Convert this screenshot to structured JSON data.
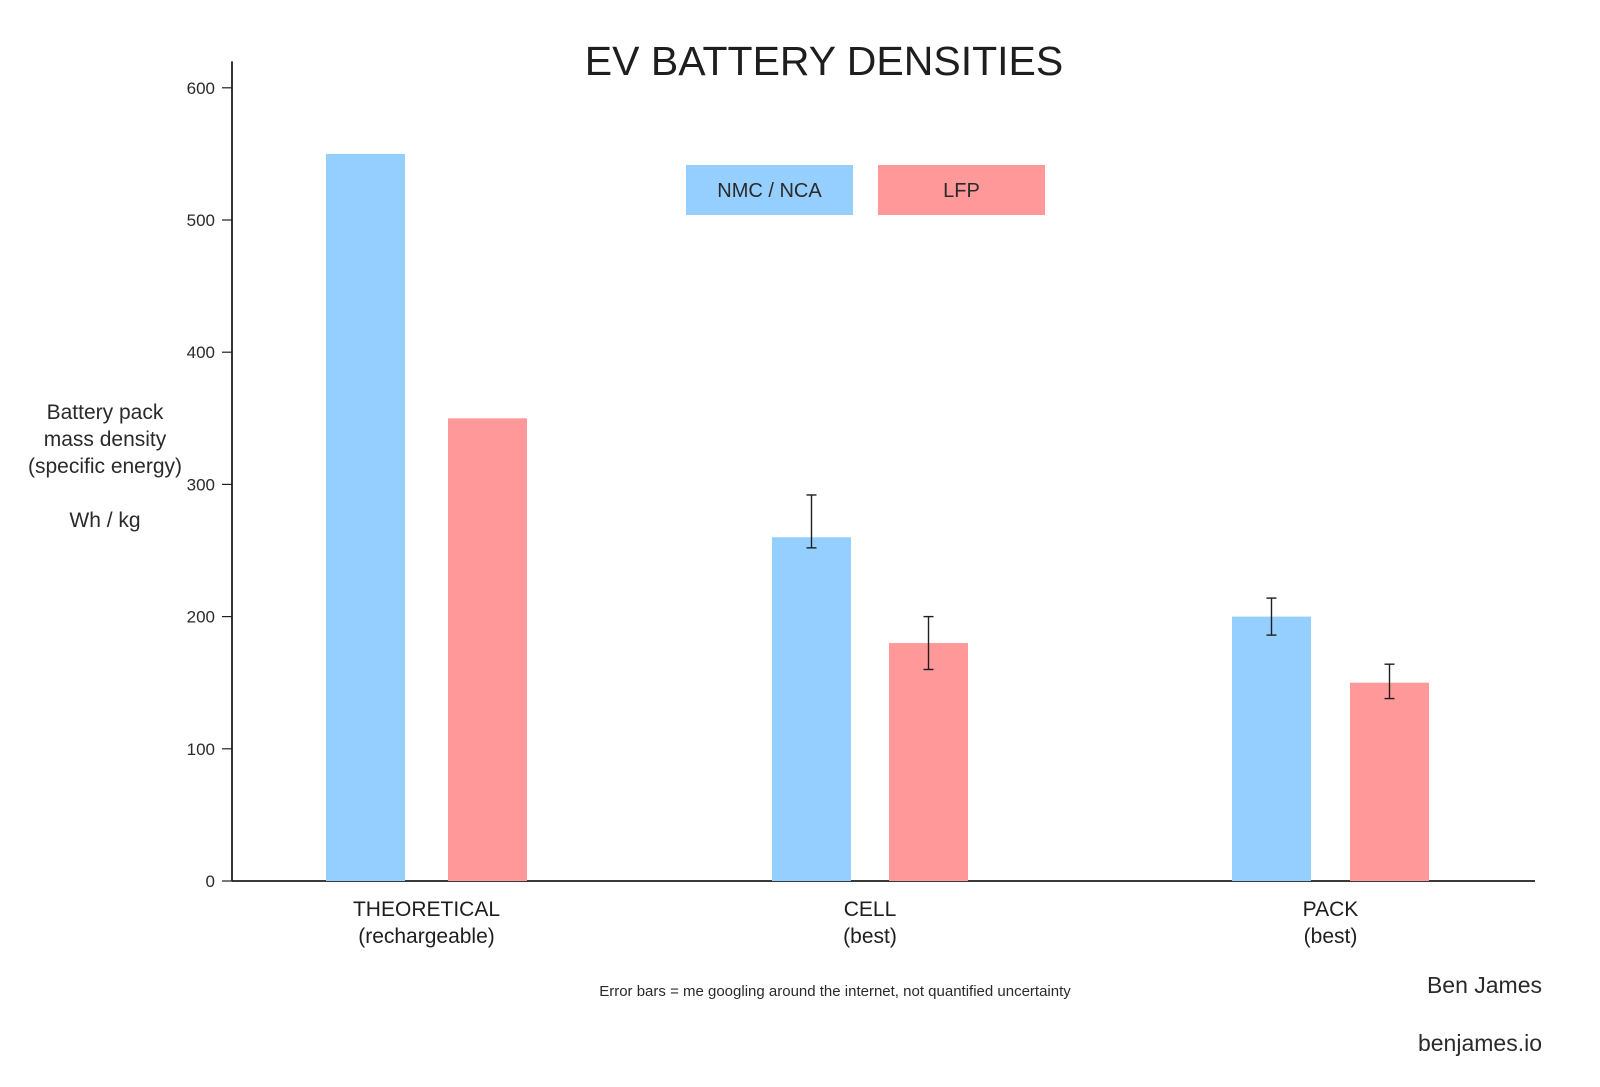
{
  "chart_data": {
    "type": "bar",
    "title": "EV BATTERY DENSITIES",
    "ylabel": "Battery pack\nmass density\n(specific energy)",
    "yunit": "Wh / kg",
    "xlabel": "",
    "ylim": [
      0,
      620
    ],
    "yticks": [
      0,
      100,
      200,
      300,
      400,
      500,
      600
    ],
    "grid": false,
    "legend_position": "top-center",
    "categories": [
      {
        "line1": "THEORETICAL",
        "line2": "(rechargeable)"
      },
      {
        "line1": "CELL",
        "line2": "(best)"
      },
      {
        "line1": "PACK",
        "line2": "(best)"
      }
    ],
    "series": [
      {
        "name": "NMC / NCA",
        "color": "#94cfff",
        "values": [
          550,
          260,
          200
        ],
        "error_bars": [
          null,
          [
            252,
            292
          ],
          [
            186,
            214
          ]
        ]
      },
      {
        "name": "LFP",
        "color": "#ff9999",
        "values": [
          350,
          180,
          150
        ],
        "error_bars": [
          null,
          [
            160,
            200
          ],
          [
            138,
            164
          ]
        ]
      }
    ],
    "footnote": "Error bars = me googling around the internet, not quantified uncertainty"
  },
  "signature": {
    "name": "Ben James",
    "site": "benjames.io"
  }
}
